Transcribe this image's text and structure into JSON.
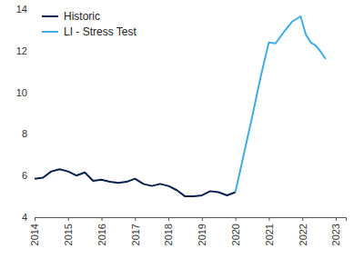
{
  "chart_data": {
    "type": "line",
    "series": [
      {
        "name": "Historic",
        "color": "#0b1f4d",
        "x": [
          2014,
          2014.25,
          2014.5,
          2014.75,
          2015,
          2015.25,
          2015.5,
          2015.75,
          2016,
          2016.25,
          2016.5,
          2016.75,
          2017,
          2017.25,
          2017.5,
          2017.75,
          2018,
          2018.25,
          2018.5,
          2018.75,
          2019,
          2019.25,
          2019.5,
          2019.75,
          2020
        ],
        "values": [
          5.85,
          5.9,
          6.2,
          6.3,
          6.2,
          6.0,
          6.15,
          5.75,
          5.8,
          5.7,
          5.65,
          5.7,
          5.85,
          5.6,
          5.5,
          5.6,
          5.5,
          5.3,
          5.0,
          5.0,
          5.05,
          5.25,
          5.2,
          5.05,
          5.2
        ]
      },
      {
        "name": "LI - Stress Test",
        "color": "#41ace3",
        "x": [
          2020,
          2020.25,
          2020.5,
          2020.75,
          2021,
          2021.2,
          2021.45,
          2021.7,
          2021.95,
          2022.1,
          2022.25,
          2022.4,
          2022.55,
          2022.7
        ],
        "values": [
          5.2,
          7.0,
          8.8,
          10.7,
          12.4,
          12.35,
          12.9,
          13.4,
          13.65,
          12.8,
          12.4,
          12.25,
          11.95,
          11.6
        ]
      }
    ],
    "xlim": [
      2014,
      2023.3
    ],
    "xticks": [
      2014,
      2015,
      2016,
      2017,
      2018,
      2019,
      2020,
      2021,
      2022,
      2023
    ],
    "ylim": [
      4,
      14
    ],
    "yticks": [
      4,
      6,
      8,
      10,
      12,
      14
    ],
    "grid": false,
    "legend": "upper-left"
  }
}
